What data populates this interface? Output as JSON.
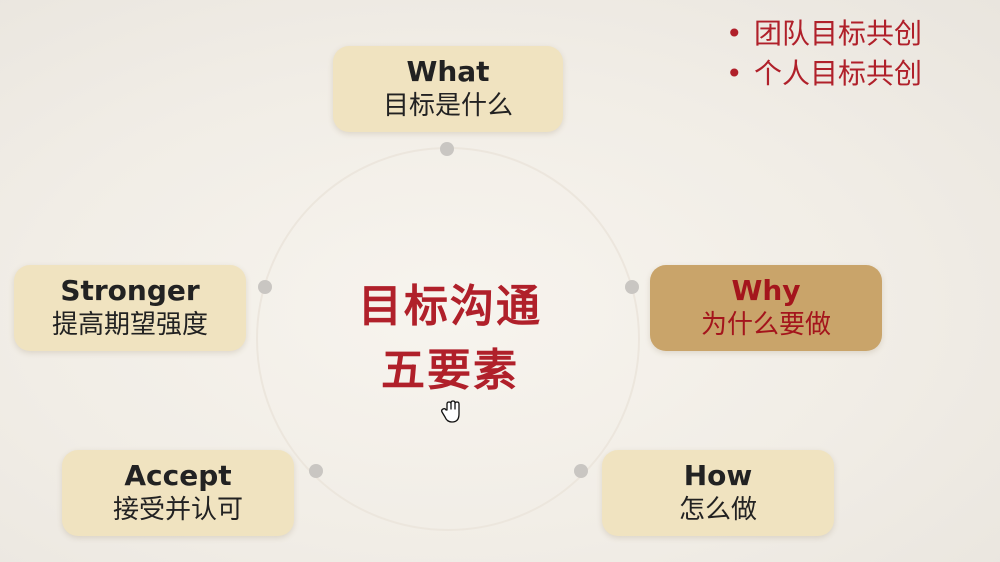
{
  "center": {
    "line1": "目标沟通",
    "line2": "五要素"
  },
  "bullets": [
    "团队目标共创",
    "个人目标共创"
  ],
  "nodes": {
    "what": {
      "en": "What",
      "cn": "目标是什么"
    },
    "why": {
      "en": "Why",
      "cn": "为什么要做"
    },
    "how": {
      "en": "How",
      "cn": "怎么做"
    },
    "accept": {
      "en": "Accept",
      "cn": "接受并认可"
    },
    "stronger": {
      "en": "Stronger",
      "cn": "提高期望强度"
    }
  },
  "colors": {
    "accent": "#b0202a",
    "node_bg": "#f0e3c0",
    "node_active_bg": "#c9a46a"
  },
  "cursor_icon": "hand-cursor-icon"
}
